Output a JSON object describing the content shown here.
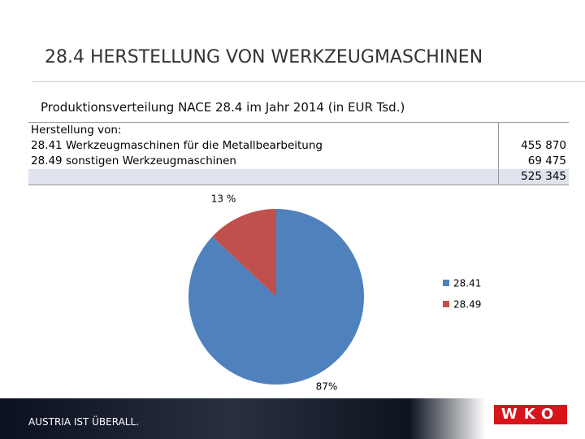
{
  "title": "28.4   HERSTELLUNG VON WERKZEUGMASCHINEN",
  "subtitle": "Produktionsverteilung NACE 28.4 im Jahr 2014 (in EUR Tsd.)",
  "table": {
    "rows": [
      {
        "label": "Herstellung von:"
      },
      {
        "label": "28.41 Werkzeugmaschinen für die Metallbearbeitung",
        "value": "455 870"
      },
      {
        "label": "28.49 sonstigen Werkzeugmaschinen",
        "value": "69 475"
      },
      {
        "value": "525 345"
      }
    ]
  },
  "chart_data": {
    "type": "pie",
    "categories": [
      "28.41",
      "28.49"
    ],
    "values": [
      87,
      13
    ],
    "value_labels": [
      "87%",
      "13 %"
    ],
    "colors": [
      "#4f81bd",
      "#c0504d"
    ]
  },
  "footer": {
    "slogan": "AUSTRIA IST ÜBERALL.",
    "logo": "WKO"
  }
}
